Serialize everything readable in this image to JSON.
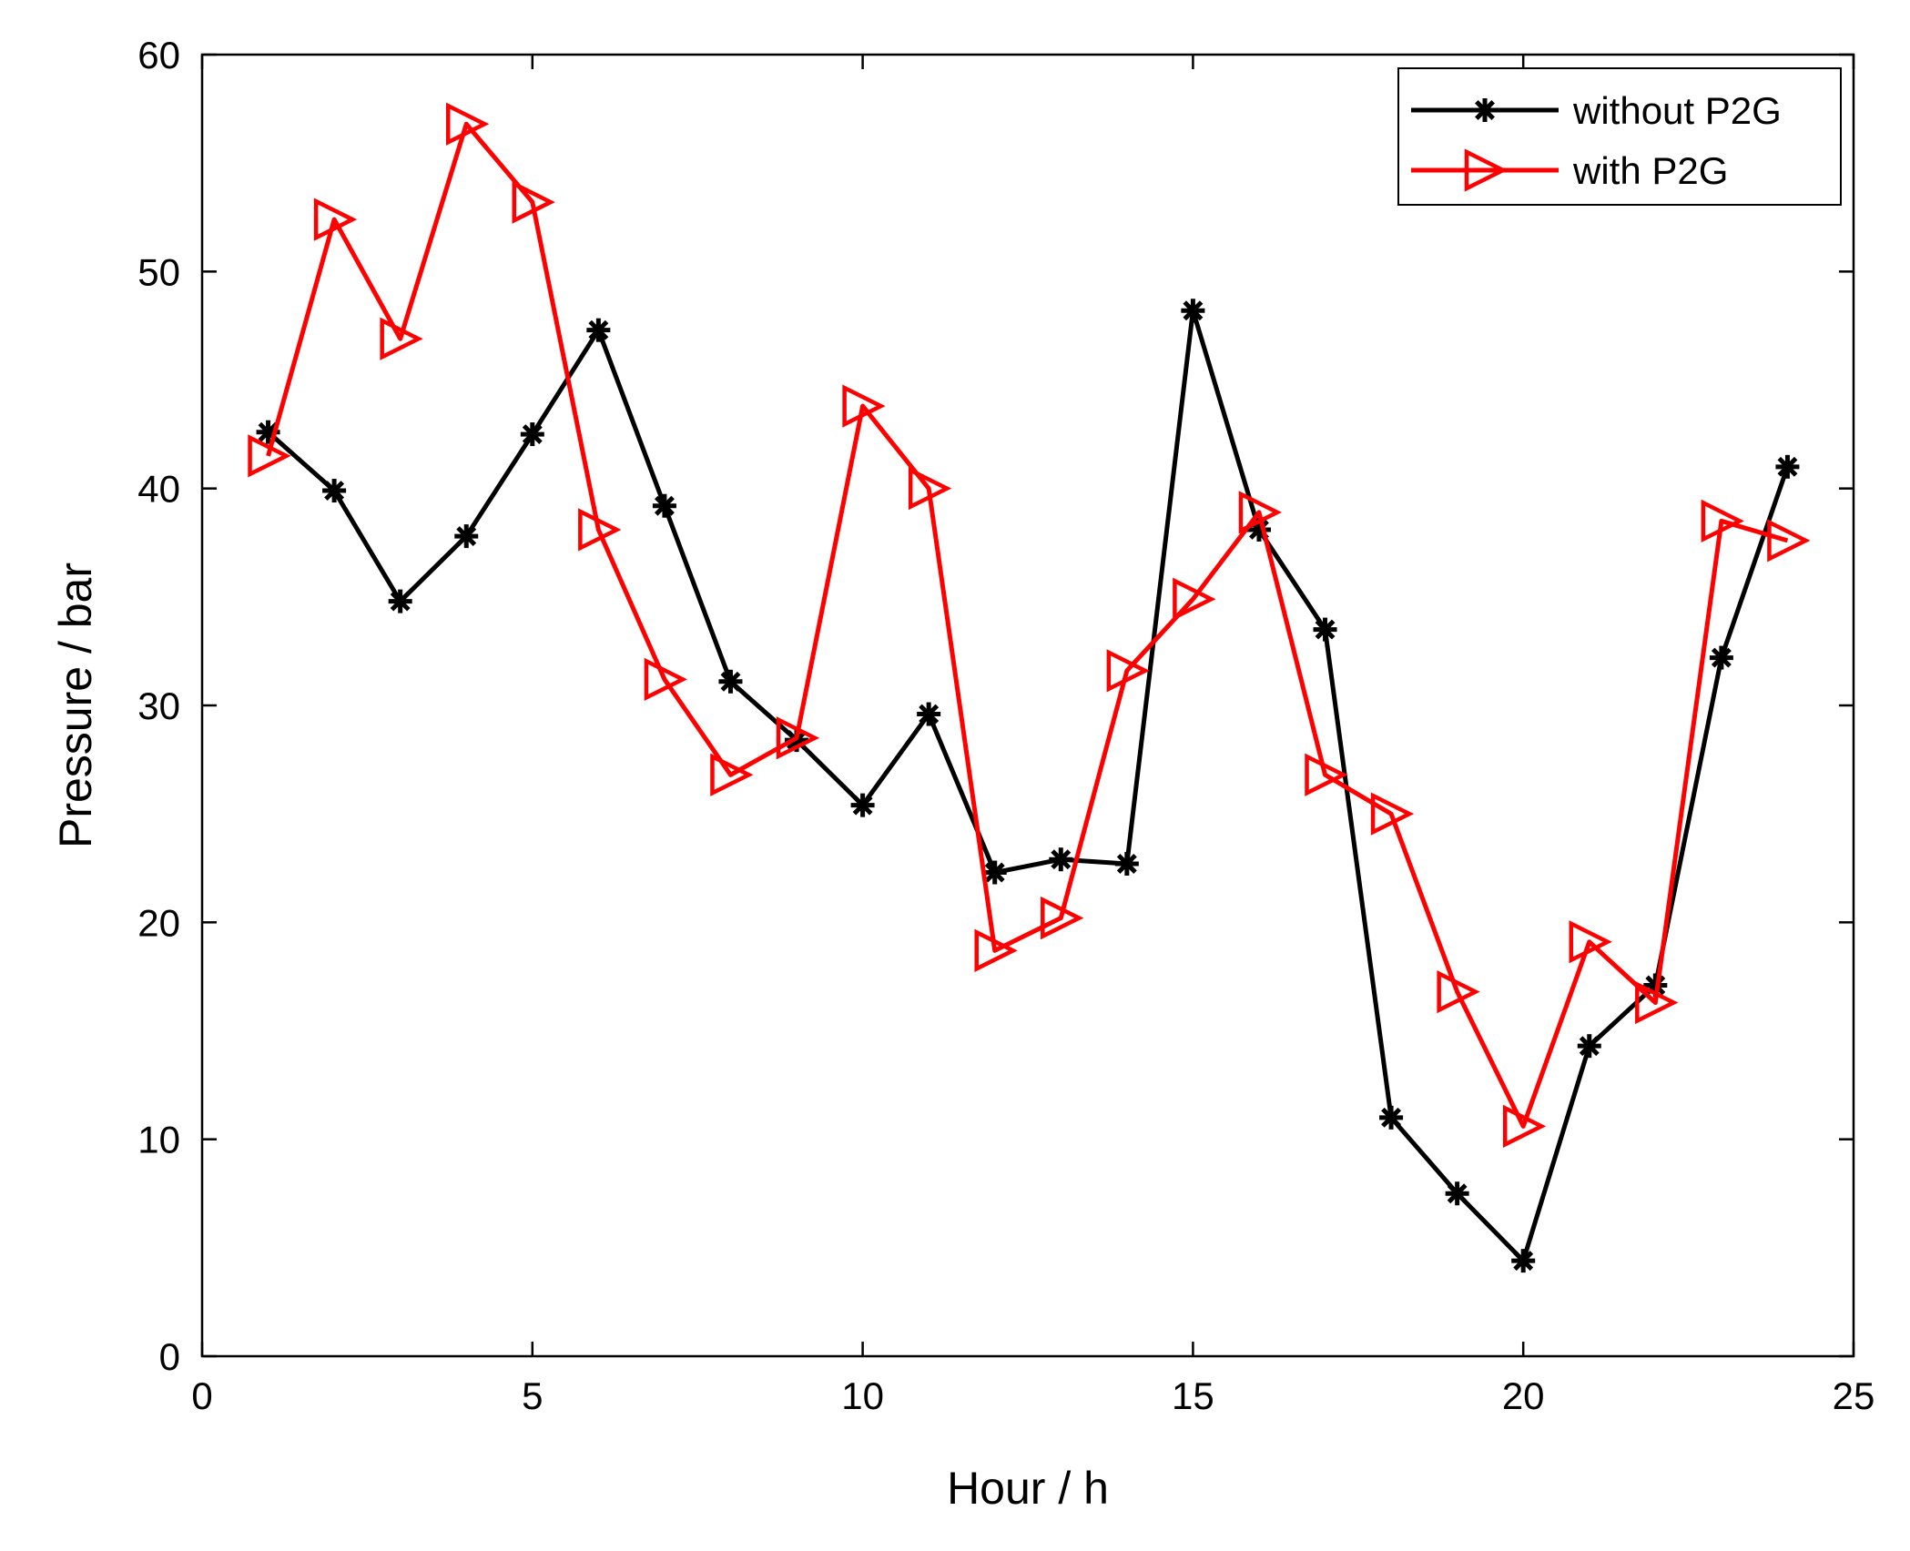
{
  "chart_data": {
    "type": "line",
    "title": "",
    "xlabel": "Hour / h",
    "ylabel": "Pressure / bar",
    "xlim": [
      0,
      25
    ],
    "ylim": [
      0,
      60
    ],
    "xticks": [
      0,
      5,
      10,
      15,
      20,
      25
    ],
    "yticks": [
      0,
      10,
      20,
      30,
      40,
      50,
      60
    ],
    "grid": false,
    "legend_position": "top-right",
    "x": [
      1,
      2,
      3,
      4,
      5,
      6,
      7,
      8,
      9,
      10,
      11,
      12,
      13,
      14,
      15,
      16,
      17,
      18,
      19,
      20,
      21,
      22,
      23,
      24
    ],
    "series": [
      {
        "name": "without P2G",
        "color": "#000000",
        "marker": "asterisk",
        "values": [
          42.6,
          39.9,
          34.8,
          37.8,
          42.5,
          47.3,
          39.2,
          31.1,
          28.4,
          25.4,
          29.6,
          22.3,
          22.9,
          22.7,
          48.2,
          38.1,
          33.5,
          11.0,
          7.5,
          4.4,
          14.3,
          17.1,
          32.2,
          41.0
        ]
      },
      {
        "name": "with P2G",
        "color": "#ff0000",
        "marker": "triangle-right",
        "values": [
          41.5,
          52.4,
          46.9,
          56.8,
          53.2,
          38.1,
          31.2,
          26.8,
          28.5,
          43.8,
          40.0,
          18.7,
          20.2,
          31.6,
          34.9,
          38.9,
          26.8,
          25.0,
          16.8,
          10.6,
          19.1,
          16.3,
          38.5,
          37.6
        ]
      }
    ]
  }
}
